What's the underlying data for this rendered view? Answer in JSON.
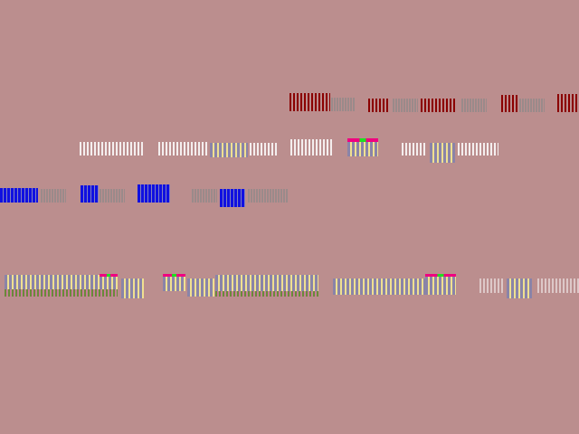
{
  "colors": {
    "background": "#bb8e8e",
    "dark_red": "#8b0000",
    "blue": "#1010e0",
    "purple_gray": "#8a84a8",
    "yellow": "#f0e090",
    "magenta": "#f00080",
    "green": "#20e020"
  }
}
